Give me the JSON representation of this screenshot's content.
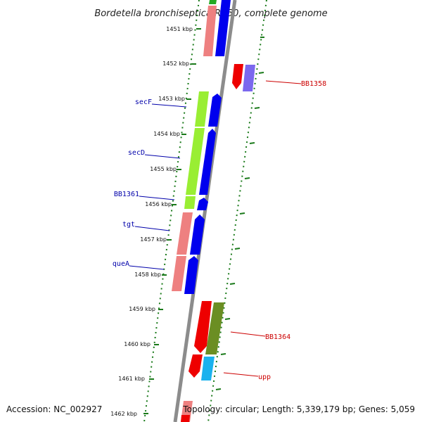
{
  "title": "Bordetella bronchiseptica RB50, complete genome",
  "footer": {
    "accession": "Accession: NC_002927",
    "summary": "Topology: circular; Length: 5,339,179 bp; Genes: 5,059"
  },
  "ticks": [
    "1451 kbp",
    "1452 kbp",
    "1453 kbp",
    "1454 kbp",
    "1455 kbp",
    "1456 kbp",
    "1457 kbp",
    "1458 kbp",
    "1459 kbp",
    "1460 kbp",
    "1461 kbp",
    "1462 kbp"
  ],
  "left_labels": [
    {
      "text": "secF",
      "color": "#0000aa"
    },
    {
      "text": "secD",
      "color": "#0000aa"
    },
    {
      "text": "BB1361",
      "color": "#0000aa"
    },
    {
      "text": "tgt",
      "color": "#0000aa"
    },
    {
      "text": "queA",
      "color": "#0000aa"
    }
  ],
  "right_labels": [
    {
      "text": "BB1358",
      "color": "#cc0000"
    },
    {
      "text": "BB1364",
      "color": "#cc0000"
    },
    {
      "text": "upp",
      "color": "#cc0000"
    }
  ],
  "colors": {
    "backbone": "#8c8c8c",
    "dotted_ring": "#1a7a1a",
    "red": "#ee0000",
    "salmon": "#ee8080",
    "blue": "#0000ee",
    "lime": "#99ee33",
    "olive": "#6b8e23",
    "purple": "#7b68ee",
    "cyan": "#1ab2ee",
    "green_top": "#22aa22"
  }
}
